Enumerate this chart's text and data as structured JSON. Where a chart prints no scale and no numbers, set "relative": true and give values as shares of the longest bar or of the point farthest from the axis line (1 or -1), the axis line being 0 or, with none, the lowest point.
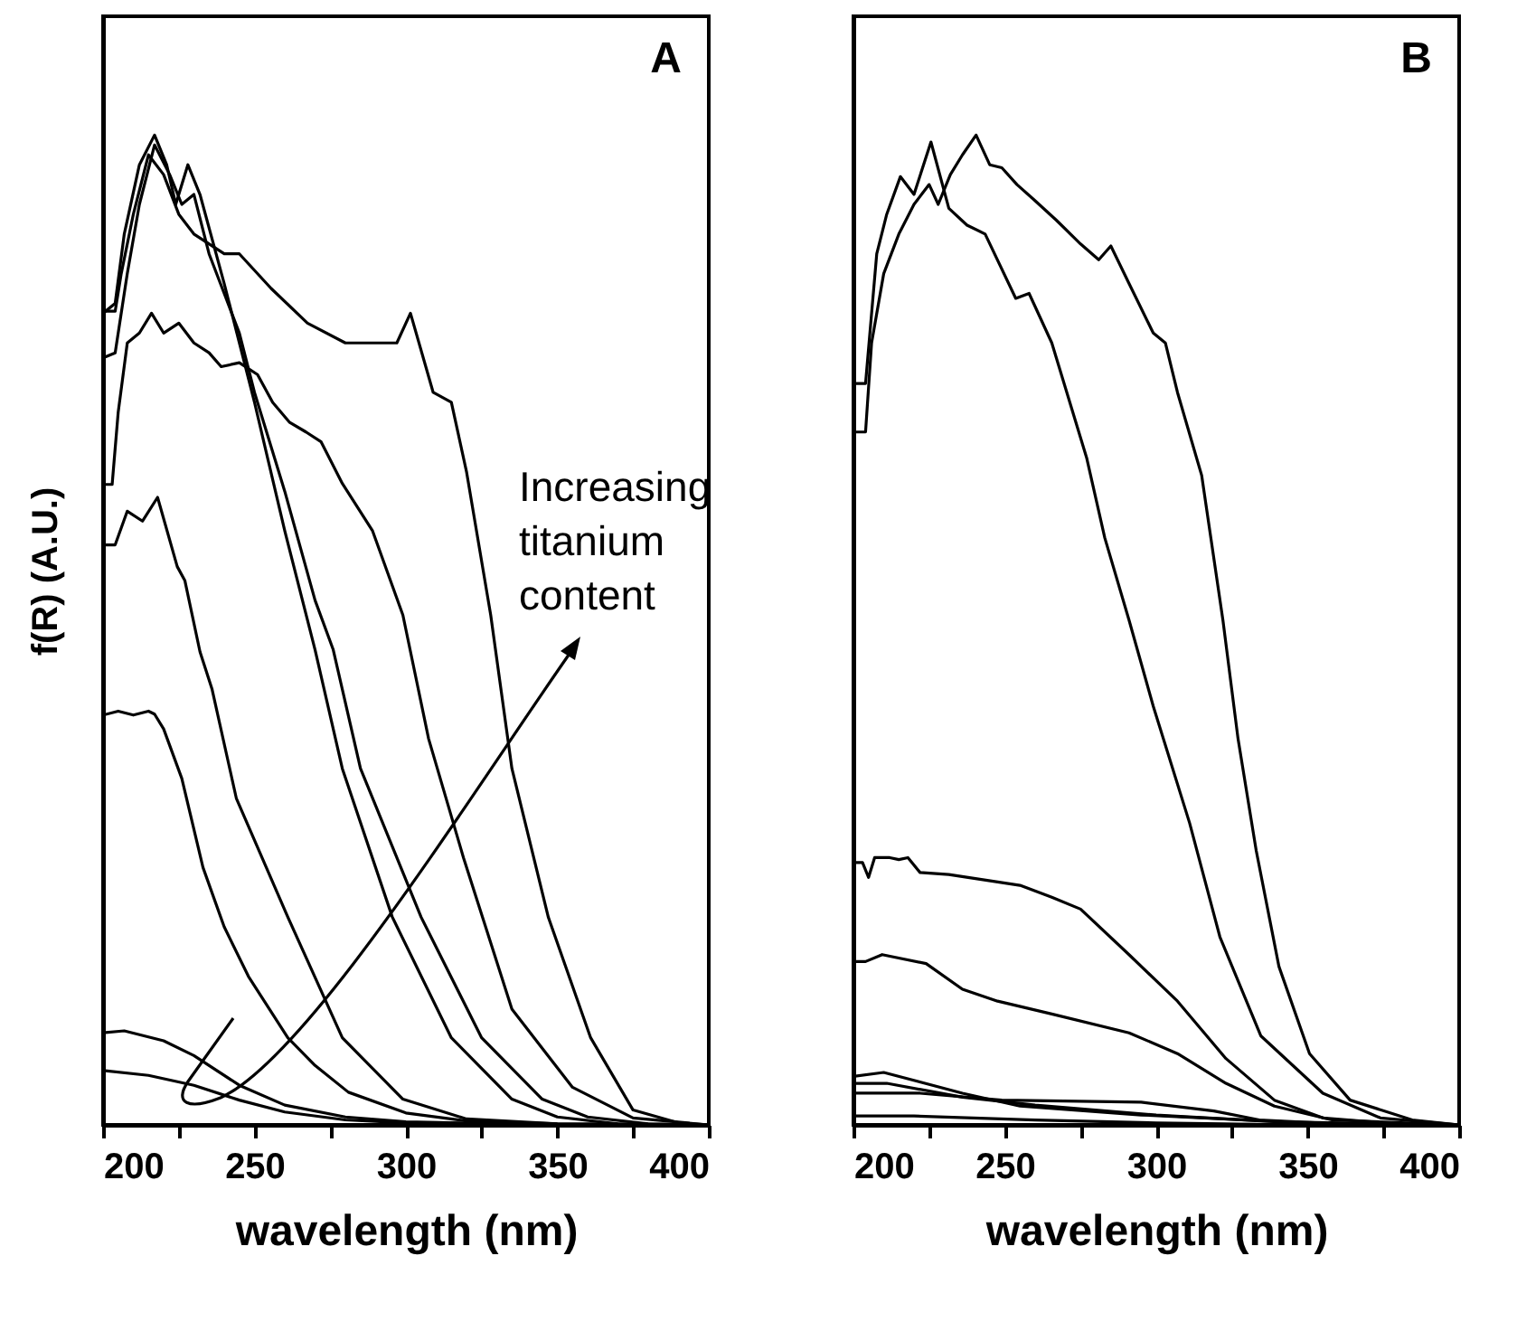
{
  "chart_data": [
    {
      "type": "line",
      "title": "A",
      "xlabel": "wavelength (nm)",
      "ylabel": "f(R) (A.U.)",
      "annotations": [
        "Increasing titanium content"
      ],
      "relative": true,
      "xlim": [
        200,
        400
      ],
      "xticks": [
        200,
        {
          "value": 225,
          "label": null
        },
        250,
        {
          "value": 275,
          "label": null
        },
        300,
        {
          "value": 325,
          "label": null
        },
        350,
        {
          "value": 375,
          "label": null
        },
        400
      ],
      "tick_labels": "x",
      "series": [
        {
          "color": "#000000",
          "x": [
            200,
            215,
            230,
            245,
            260,
            280,
            300,
            350,
            400
          ],
          "values": [
            0.055,
            0.05,
            0.04,
            0.025,
            0.013,
            0.005,
            0.002,
            0,
            0
          ]
        },
        {
          "color": "#000000",
          "x": [
            200,
            207,
            220,
            230,
            245,
            260,
            280,
            300,
            350,
            400
          ],
          "values": [
            0.093,
            0.095,
            0.085,
            0.07,
            0.04,
            0.02,
            0.008,
            0.003,
            0,
            0
          ]
        },
        {
          "color": "#000000",
          "x": [
            200,
            205,
            210,
            215,
            217,
            220,
            226,
            233,
            240,
            248,
            261,
            270,
            281,
            300,
            320,
            350,
            400
          ],
          "values": [
            0.414,
            0.418,
            0.414,
            0.418,
            0.415,
            0.4,
            0.35,
            0.26,
            0.2,
            0.15,
            0.088,
            0.06,
            0.033,
            0.012,
            0.004,
            0.001,
            0
          ]
        },
        {
          "color": "#000000",
          "x": [
            200,
            204,
            208,
            213,
            218,
            224.5,
            227,
            232,
            236,
            244,
            261,
            279,
            299,
            320,
            350,
            400
          ],
          "values": [
            0.586,
            0.586,
            0.62,
            0.61,
            0.634,
            0.564,
            0.55,
            0.478,
            0.44,
            0.33,
            0.21,
            0.088,
            0.026,
            0.006,
            0.001,
            0
          ]
        },
        {
          "color": "#000000",
          "x": [
            200,
            203,
            205,
            208,
            212,
            216,
            220,
            225,
            230,
            235,
            239,
            245,
            251,
            256,
            261.5,
            267,
            272,
            279,
            289,
            299,
            307.5,
            319,
            335,
            355,
            375,
            400
          ],
          "values": [
            0.647,
            0.647,
            0.72,
            0.79,
            0.8,
            0.82,
            0.8,
            0.81,
            0.79,
            0.78,
            0.766,
            0.77,
            0.758,
            0.73,
            0.71,
            0.7,
            0.69,
            0.648,
            0.6,
            0.515,
            0.39,
            0.27,
            0.117,
            0.038,
            0.007,
            0
          ]
        },
        {
          "color": "#000000",
          "x": [
            200,
            204,
            208,
            212,
            217,
            222,
            226,
            230,
            235,
            240,
            245,
            250,
            260,
            270,
            276,
            285,
            305,
            325,
            345,
            360,
            380,
            400
          ],
          "values": [
            0.775,
            0.78,
            0.86,
            0.93,
            0.99,
            0.96,
            0.93,
            0.94,
            0.88,
            0.84,
            0.8,
            0.74,
            0.64,
            0.53,
            0.48,
            0.36,
            0.21,
            0.088,
            0.026,
            0.008,
            0.001,
            0
          ]
        },
        {
          "color": "#000000",
          "x": [
            200,
            204,
            207,
            212,
            217,
            221,
            224,
            228,
            232,
            240,
            250,
            260,
            270,
            279,
            295.5,
            315,
            335,
            350,
            370,
            400
          ],
          "values": [
            0.82,
            0.83,
            0.9,
            0.97,
            1.0,
            0.97,
            0.93,
            0.97,
            0.94,
            0.85,
            0.73,
            0.6,
            0.48,
            0.36,
            0.21,
            0.088,
            0.026,
            0.008,
            0.001,
            0
          ]
        },
        {
          "color": "#000000",
          "x": [
            200,
            204,
            206,
            210,
            215,
            220,
            225,
            230,
            240,
            245,
            255.5,
            267.5,
            280,
            290,
            297,
            301.5,
            309,
            315,
            320,
            328,
            335,
            347,
            361,
            375,
            390,
            400
          ],
          "values": [
            0.822,
            0.822,
            0.86,
            0.92,
            0.98,
            0.96,
            0.92,
            0.9,
            0.88,
            0.88,
            0.845,
            0.81,
            0.79,
            0.79,
            0.79,
            0.82,
            0.74,
            0.73,
            0.66,
            0.515,
            0.36,
            0.21,
            0.088,
            0.015,
            0.002,
            0
          ]
        }
      ]
    },
    {
      "type": "line",
      "title": "B",
      "xlabel": "wavelength (nm)",
      "relative": true,
      "xlim": [
        200,
        400
      ],
      "xticks": [
        200,
        {
          "value": 225,
          "label": null
        },
        250,
        {
          "value": 275,
          "label": null
        },
        300,
        {
          "value": 325,
          "label": null
        },
        350,
        {
          "value": 375,
          "label": null
        },
        400
      ],
      "tick_labels": "x",
      "series": [
        {
          "color": "#000000",
          "x": [
            200,
            204,
            206,
            210,
            215,
            220,
            225,
            228,
            232,
            236,
            240.5,
            245,
            249,
            254,
            259.5,
            267,
            275,
            281,
            285,
            291,
            299,
            303,
            307,
            315,
            322,
            327,
            333,
            340.5,
            350.6,
            364,
            384.5,
            400
          ],
          "values": [
            0.7,
            0.7,
            0.79,
            0.86,
            0.9,
            0.93,
            0.95,
            0.93,
            0.96,
            0.98,
            1.0,
            0.97,
            0.967,
            0.95,
            0.935,
            0.914,
            0.89,
            0.874,
            0.888,
            0.85,
            0.8,
            0.79,
            0.74,
            0.656,
            0.51,
            0.39,
            0.277,
            0.16,
            0.072,
            0.025,
            0.005,
            0
          ]
        },
        {
          "color": "#000000",
          "x": [
            200,
            204,
            207.7,
            211,
            215.5,
            220,
            225.6,
            231.5,
            237.5,
            243.5,
            253.6,
            258,
            265.5,
            277,
            283,
            291,
            299,
            311,
            321,
            334.5,
            355,
            374,
            400
          ],
          "values": [
            0.749,
            0.749,
            0.88,
            0.92,
            0.958,
            0.94,
            0.993,
            0.926,
            0.909,
            0.9,
            0.835,
            0.84,
            0.79,
            0.674,
            0.593,
            0.51,
            0.423,
            0.305,
            0.19,
            0.09,
            0.032,
            0.007,
            0
          ]
        },
        {
          "color": "#000000",
          "x": [
            200,
            203,
            205,
            207,
            212,
            215,
            218,
            222,
            231.5,
            255,
            265.5,
            275,
            291,
            307,
            323,
            339,
            355,
            380,
            400
          ],
          "values": [
            0.265,
            0.265,
            0.25,
            0.27,
            0.27,
            0.268,
            0.27,
            0.255,
            0.253,
            0.242,
            0.23,
            0.218,
            0.172,
            0.125,
            0.067,
            0.025,
            0.007,
            0.001,
            0
          ]
        },
        {
          "color": "#000000",
          "x": [
            200,
            204,
            209.5,
            224,
            236,
            247.6,
            265.5,
            291,
            307,
            323,
            339,
            358,
            400
          ],
          "values": [
            0.165,
            0.165,
            0.172,
            0.163,
            0.137,
            0.125,
            0.112,
            0.093,
            0.072,
            0.042,
            0.019,
            0.005,
            0
          ]
        },
        {
          "color": "#000000",
          "x": [
            200,
            210,
            236,
            255,
            295,
            350,
            400
          ],
          "values": [
            0.049,
            0.053,
            0.032,
            0.019,
            0.01,
            0.002,
            0
          ]
        },
        {
          "color": "#000000",
          "x": [
            200,
            211,
            236,
            260,
            300,
            340,
            400
          ],
          "values": [
            0.042,
            0.042,
            0.028,
            0.02,
            0.01,
            0.003,
            0
          ]
        },
        {
          "color": "#000000",
          "x": [
            200,
            222,
            249,
            295,
            319,
            334,
            360,
            400
          ],
          "values": [
            0.032,
            0.032,
            0.025,
            0.023,
            0.014,
            0.005,
            0.001,
            0
          ]
        },
        {
          "color": "#000000",
          "x": [
            200,
            220,
            260,
            300,
            350,
            400
          ],
          "values": [
            0.009,
            0.009,
            0.005,
            0.002,
            0,
            0
          ]
        }
      ]
    }
  ]
}
